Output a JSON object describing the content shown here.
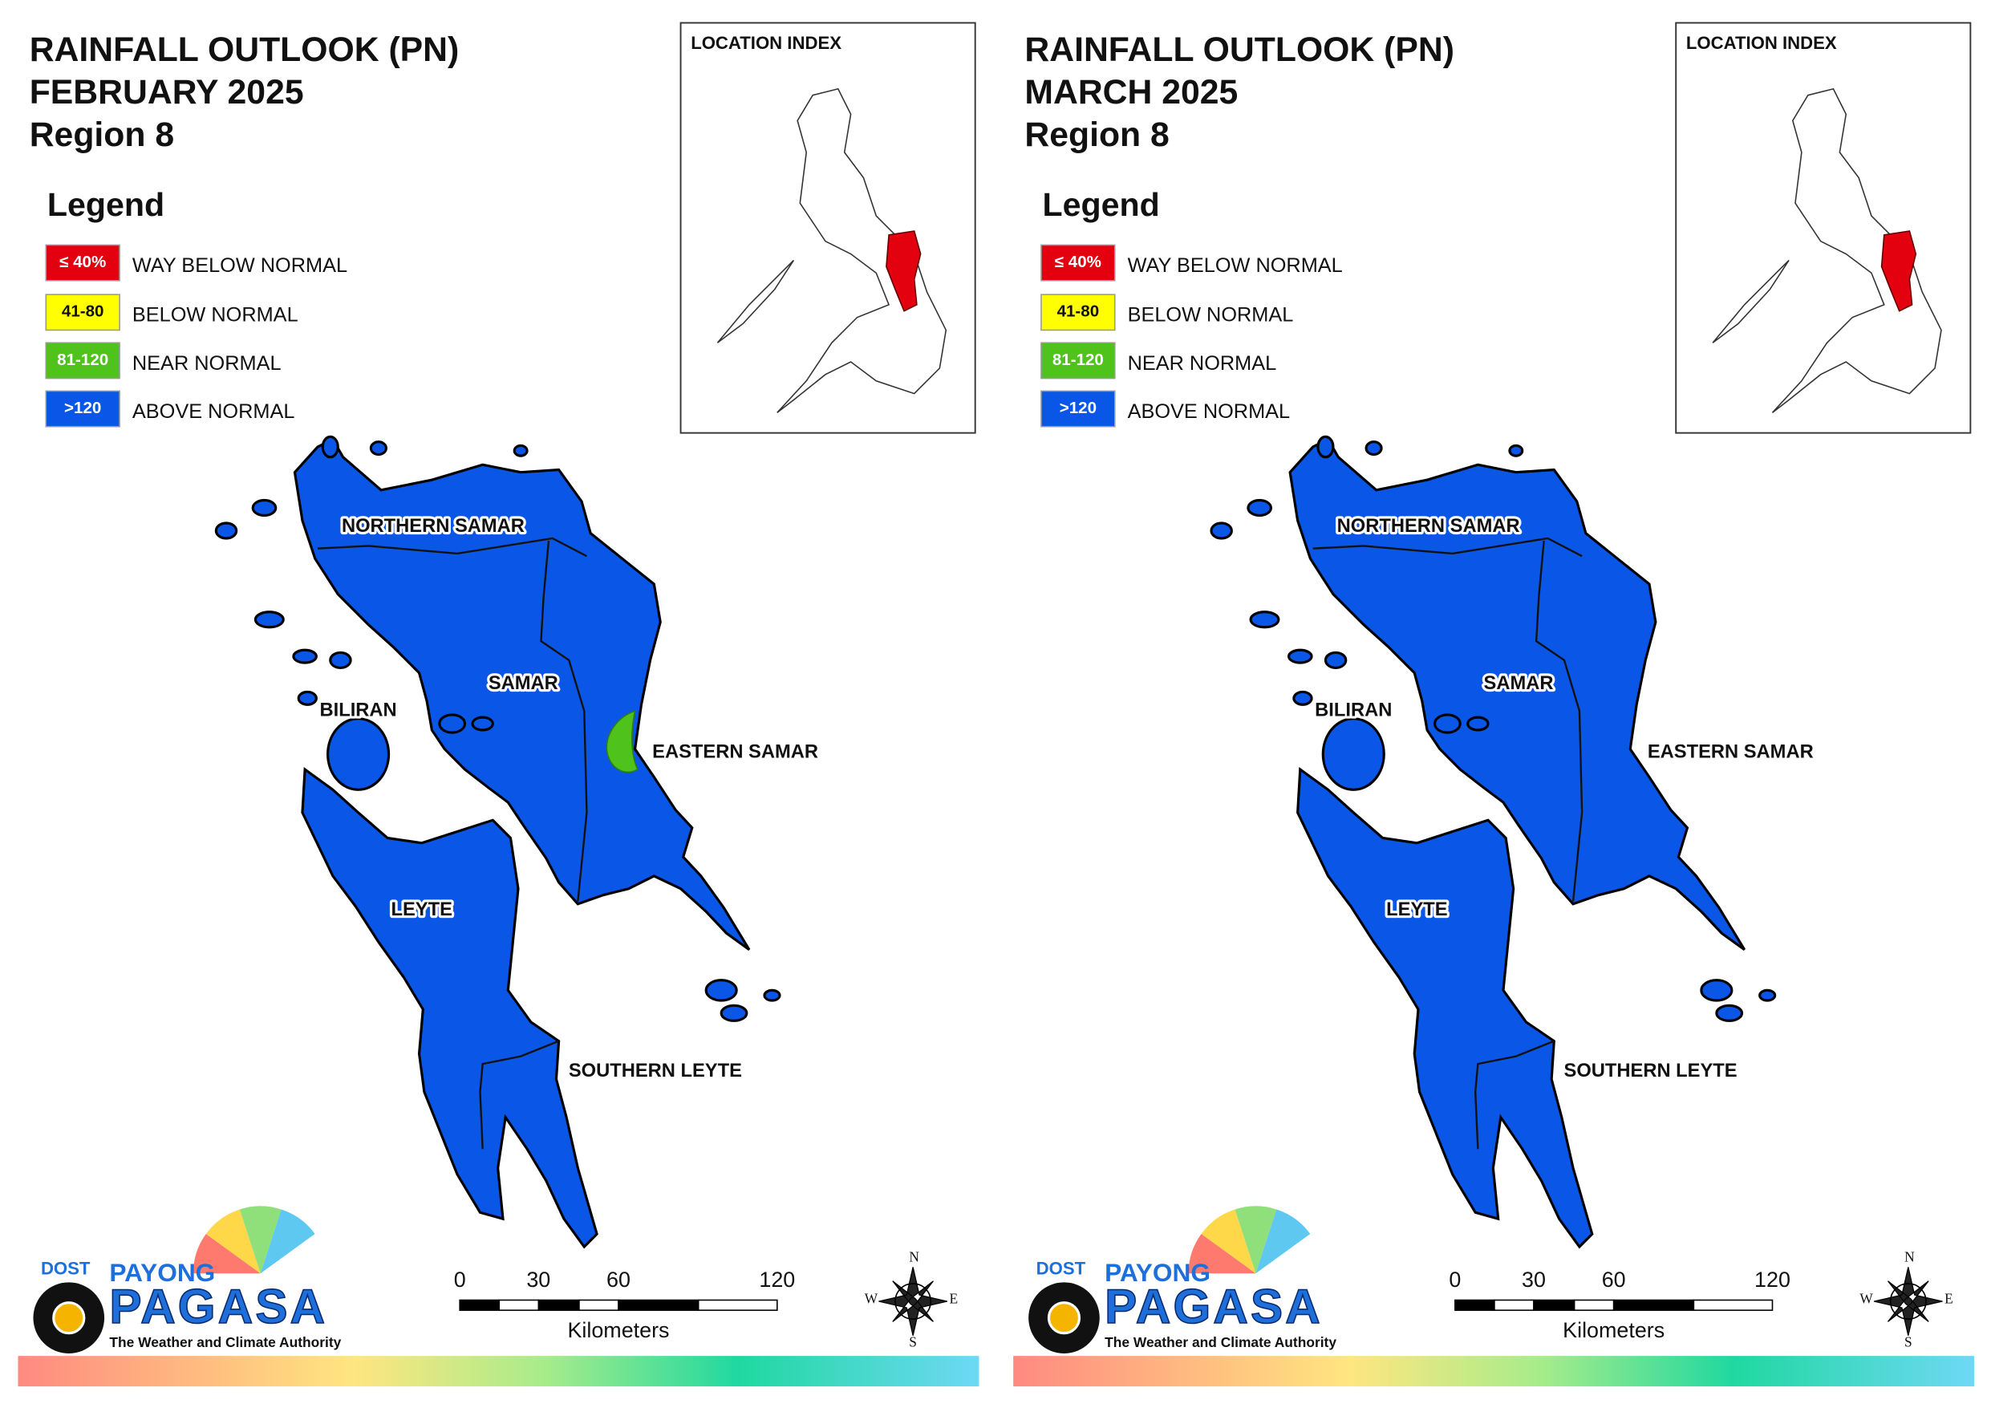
{
  "panels": [
    {
      "title": [
        "RAINFALL OUTLOOK (PN)",
        "FEBRUARY 2025",
        "Region 8"
      ],
      "location_index": "LOCATION INDEX",
      "legend": {
        "title": "Legend",
        "items": [
          {
            "key": "≤ 40%",
            "label": "WAY BELOW NORMAL",
            "color": "#e3000f"
          },
          {
            "key": "41-80",
            "label": "BELOW NORMAL",
            "color": "#ffff00"
          },
          {
            "key": "81-120",
            "label": "NEAR NORMAL",
            "color": "#4fc21c"
          },
          {
            "key": ">120",
            "label": "ABOVE NORMAL",
            "color": "#0a56e6"
          }
        ]
      },
      "regions": [
        "NORTHERN SAMAR",
        "SAMAR",
        "BILIRAN",
        "EASTERN SAMAR",
        "LEYTE",
        "SOUTHERN LEYTE"
      ],
      "logo": {
        "agency": "DOST",
        "brand": "PAYONG",
        "name": "PAGASA",
        "tagline": "The Weather and Climate Authority"
      },
      "scale": {
        "ticks": [
          "0",
          "30",
          "60",
          "120"
        ],
        "unit": "Kilometers"
      },
      "compass": [
        "N",
        "E",
        "S",
        "W"
      ]
    },
    {
      "title": [
        "RAINFALL OUTLOOK (PN)",
        "MARCH 2025",
        "Region 8"
      ],
      "location_index": "LOCATION INDEX",
      "legend": {
        "title": "Legend",
        "items": [
          {
            "key": "≤ 40%",
            "label": "WAY BELOW NORMAL",
            "color": "#e3000f"
          },
          {
            "key": "41-80",
            "label": "BELOW NORMAL",
            "color": "#ffff00"
          },
          {
            "key": "81-120",
            "label": "NEAR NORMAL",
            "color": "#4fc21c"
          },
          {
            "key": ">120",
            "label": "ABOVE NORMAL",
            "color": "#0a56e6"
          }
        ]
      },
      "regions": [
        "NORTHERN SAMAR",
        "SAMAR",
        "BILIRAN",
        "EASTERN SAMAR",
        "LEYTE",
        "SOUTHERN LEYTE"
      ],
      "logo": {
        "agency": "DOST",
        "brand": "PAYONG",
        "name": "PAGASA",
        "tagline": "The Weather and Climate Authority"
      },
      "scale": {
        "ticks": [
          "0",
          "30",
          "60",
          "120"
        ],
        "unit": "Kilometers"
      },
      "compass": [
        "N",
        "E",
        "S",
        "W"
      ]
    }
  ]
}
